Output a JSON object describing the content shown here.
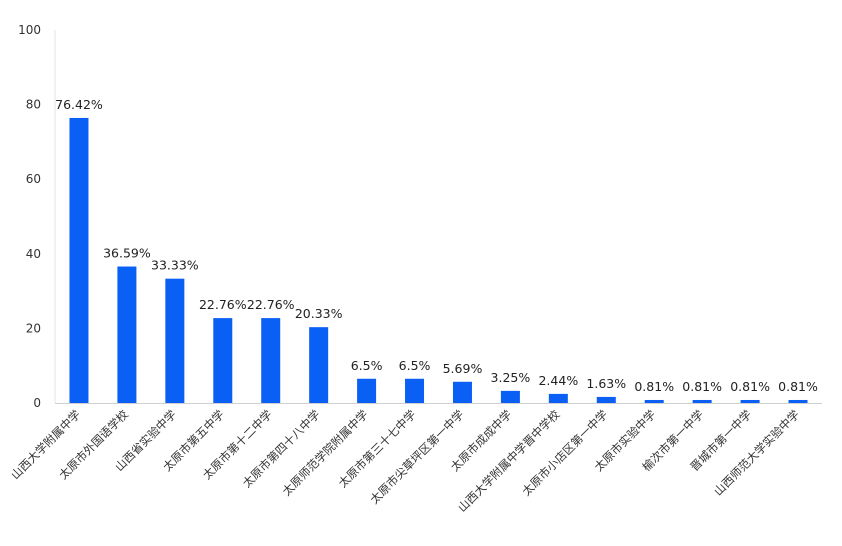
{
  "chart_data": {
    "type": "bar",
    "categories": [
      "山西大学附属中学",
      "太原市外国语学校",
      "山西省实验中学",
      "太原市第五中学",
      "太原市第十二中学",
      "太原市第四十八中学",
      "太原师范学院附属中学",
      "太原市第三十七中学",
      "太原市尖草坪区第一中学",
      "太原市成成中学",
      "山西大学附属中学晋中学校",
      "太原市小店区第一中学",
      "太原市实验中学",
      "榆次市第一中学",
      "晋城市第一中学",
      "山西师范大学实验中学"
    ],
    "values": [
      76.42,
      36.59,
      33.33,
      22.76,
      22.76,
      20.33,
      6.5,
      6.5,
      5.69,
      3.25,
      2.44,
      1.63,
      0.81,
      0.81,
      0.81,
      0.81
    ],
    "value_labels": [
      "76.42%",
      "36.59%",
      "33.33%",
      "22.76%",
      "22.76%",
      "20.33%",
      "6.5%",
      "6.5%",
      "5.69%",
      "3.25%",
      "2.44%",
      "1.63%",
      "0.81%",
      "0.81%",
      "0.81%",
      "0.81%"
    ],
    "y_ticks": [
      "0",
      "20",
      "40",
      "60",
      "80",
      "100"
    ],
    "ylim": [
      0,
      100
    ],
    "title": "",
    "xlabel": "",
    "ylabel": "",
    "bar_color": "#0a5ff5",
    "grid": false
  }
}
